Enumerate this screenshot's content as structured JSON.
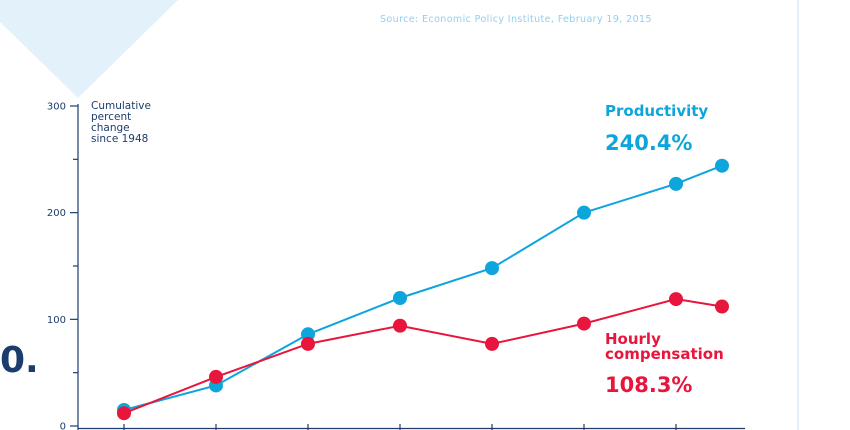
{
  "source": "Source: Economic Policy Institute, February 19, 2015",
  "partial_text": "0.",
  "colors": {
    "productivity": "#0ea5dc",
    "compensation": "#e8153c",
    "axis": "#1c3c6e",
    "decoration": "#e3f1fb"
  },
  "chart_data": {
    "type": "line",
    "ylabel_lines": [
      "Cumulative",
      "percent",
      "change",
      "since 1948"
    ],
    "ylim": [
      0,
      300
    ],
    "yticks": [
      0,
      100,
      200,
      300
    ],
    "x": [
      1,
      2,
      3,
      4,
      5,
      6,
      7,
      7.5
    ],
    "grid": false,
    "series": [
      {
        "key": "productivity",
        "name_lines": [
          "Productivity"
        ],
        "value_label": "240.4%",
        "values": [
          15,
          38,
          86,
          120,
          148,
          200,
          227,
          244
        ]
      },
      {
        "key": "compensation",
        "name_lines": [
          "Hourly",
          "compensation"
        ],
        "value_label": "108.3%",
        "values": [
          12,
          46,
          77,
          94,
          77,
          96,
          119,
          112
        ]
      }
    ]
  }
}
